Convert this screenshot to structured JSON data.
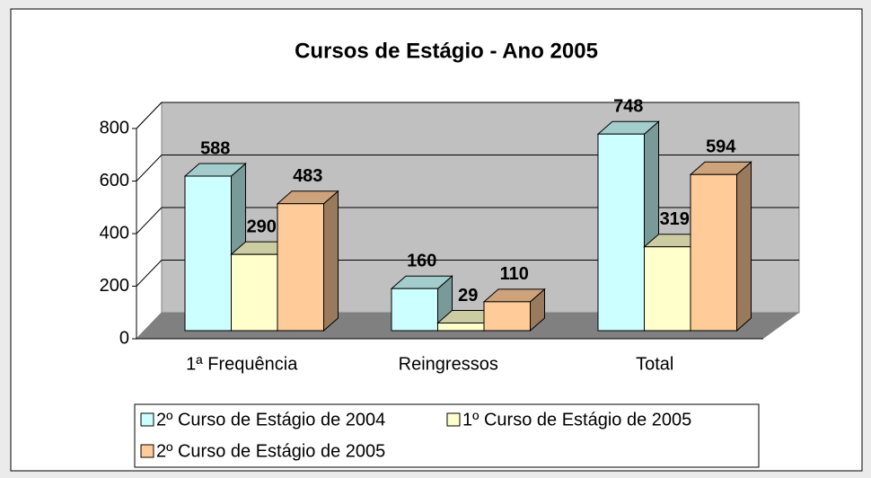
{
  "chart_data": {
    "type": "bar3d",
    "title": "Cursos de Estágio - Ano 2005",
    "categories": [
      "1ª Frequência",
      "Reingressos",
      "Total"
    ],
    "series": [
      {
        "name": "2º Curso de Estágio de 2004",
        "color": "#ccffff",
        "values": [
          588,
          160,
          748
        ]
      },
      {
        "name": "1º Curso de Estágio de 2005",
        "color": "#ffffcc",
        "values": [
          290,
          29,
          319
        ]
      },
      {
        "name": "2º Curso de Estágio de 2005",
        "color": "#ffcc99",
        "values": [
          483,
          110,
          594
        ]
      }
    ],
    "ylim": [
      0,
      800
    ],
    "yticks": [
      0,
      200,
      400,
      600,
      800
    ],
    "grid": true,
    "legend": "bottom"
  }
}
